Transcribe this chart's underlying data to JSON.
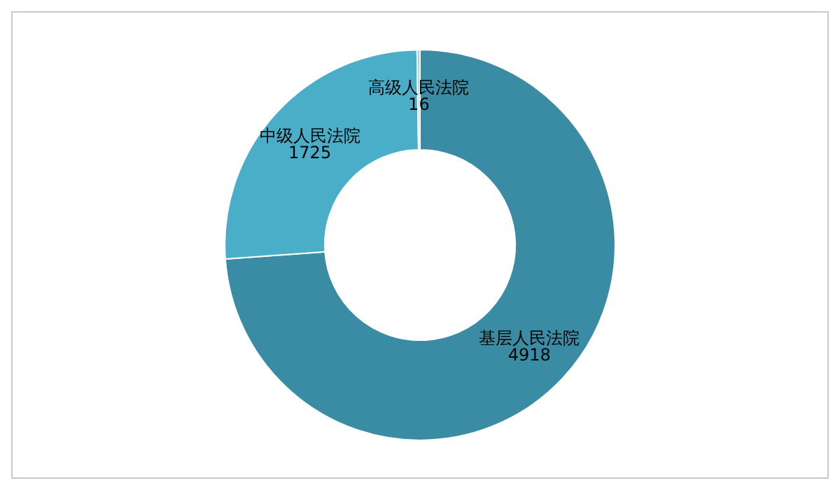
{
  "chart_data": {
    "type": "donut",
    "categories": [
      "基层人民法院",
      "中级人民法院",
      "高级人民法院"
    ],
    "values": [
      4918,
      1725,
      16
    ],
    "colors": [
      "#3a8ca4",
      "#4aaec9",
      "#9fd0e0"
    ],
    "data_labels": true,
    "legend": false
  }
}
